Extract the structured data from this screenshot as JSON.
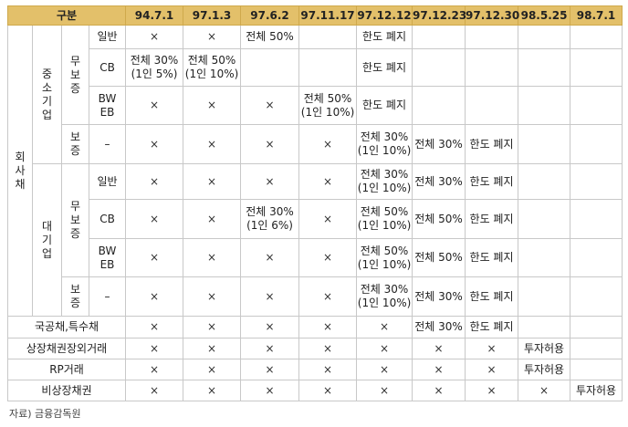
{
  "header": {
    "gubun": "구분",
    "dates": [
      "94.7.1",
      "97.1.3",
      "97.6.2",
      "97.11.17",
      "97.12.12",
      "97.12.23",
      "97.12.30",
      "98.5.25",
      "98.7.1"
    ]
  },
  "labels": {
    "hoesachae": [
      "회",
      "사",
      "채"
    ],
    "jungso": [
      "중",
      "소",
      "기",
      "업"
    ],
    "dae": [
      "대",
      "기",
      "업"
    ],
    "mubojung": [
      "무",
      "보",
      "증"
    ],
    "bojung": [
      "보",
      "증"
    ],
    "ilban": "일반",
    "cb": "CB",
    "bweb1": "BW",
    "bweb2": "EB",
    "dash": "–"
  },
  "rows": {
    "s_ilban": [
      "×",
      "×",
      "전체 50%",
      "",
      "한도 폐지",
      "",
      "",
      "",
      ""
    ],
    "s_cb": [
      [
        "전체 30%",
        "(1인 5%)"
      ],
      [
        "전체 50%",
        "(1인 10%)"
      ],
      "",
      "",
      "한도 폐지",
      "",
      "",
      "",
      ""
    ],
    "s_bweb": [
      "×",
      "×",
      "×",
      [
        "전체 50%",
        "(1인 10%)"
      ],
      "한도 폐지",
      "",
      "",
      "",
      ""
    ],
    "s_bojung": [
      "×",
      "×",
      "×",
      "×",
      [
        "전체 30%",
        "(1인 10%)"
      ],
      "전체 30%",
      "한도 폐지",
      "",
      ""
    ],
    "l_ilban": [
      "×",
      "×",
      "×",
      "×",
      [
        "전체 30%",
        "(1인 10%)"
      ],
      "전체 30%",
      "한도 폐지",
      "",
      ""
    ],
    "l_cb": [
      "×",
      "×",
      [
        "전체 30%",
        "(1인 6%)"
      ],
      "×",
      [
        "전체 50%",
        "(1인 10%)"
      ],
      "전체 50%",
      "한도 폐지",
      "",
      ""
    ],
    "l_bweb": [
      "×",
      "×",
      "×",
      "×",
      [
        "전체 50%",
        "(1인 10%)"
      ],
      "전체 50%",
      "한도 폐지",
      "",
      ""
    ],
    "l_bojung": [
      "×",
      "×",
      "×",
      "×",
      [
        "전체 30%",
        "(1인 10%)"
      ],
      "전체 30%",
      "한도 폐지",
      "",
      ""
    ],
    "gukgong": [
      "×",
      "×",
      "×",
      "×",
      "×",
      "전체 30%",
      "한도 폐지",
      "",
      ""
    ],
    "sangjang": [
      "×",
      "×",
      "×",
      "×",
      "×",
      "×",
      "×",
      "투자허용",
      ""
    ],
    "rp": [
      "×",
      "×",
      "×",
      "×",
      "×",
      "×",
      "×",
      "투자허용",
      ""
    ],
    "bisangjang": [
      "×",
      "×",
      "×",
      "×",
      "×",
      "×",
      "×",
      "×",
      "투자허용"
    ]
  },
  "row_labels": {
    "gukgong": "국공채,특수채",
    "sangjang": "상장채권장외거래",
    "rp": "RP거래",
    "bisangjang": "비상장채권"
  },
  "source": "자료) 금융감독원"
}
